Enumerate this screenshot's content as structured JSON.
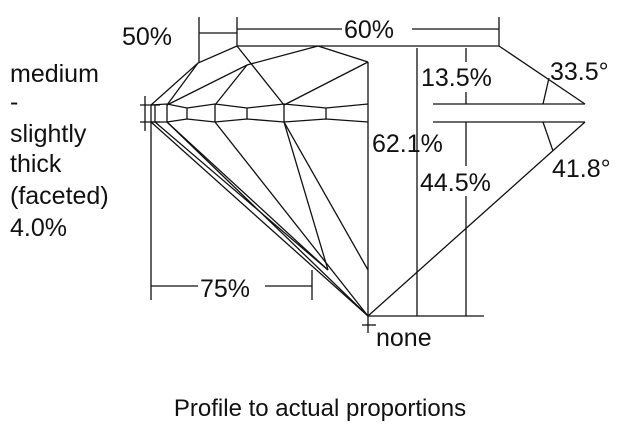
{
  "labels": {
    "crown_angle_table": "50%",
    "table": "60%",
    "girdle": [
      "medium",
      "-",
      "slightly",
      "thick",
      "(faceted)",
      "4.0%"
    ],
    "crown_height": "13.5%",
    "crown_angle": "33.5°",
    "total_depth": "62.1%",
    "pavilion_depth": "44.5%",
    "pavilion_angle": "41.8°",
    "lower_half": "75%",
    "culet": "none"
  },
  "caption": "Profile to actual proportions"
}
